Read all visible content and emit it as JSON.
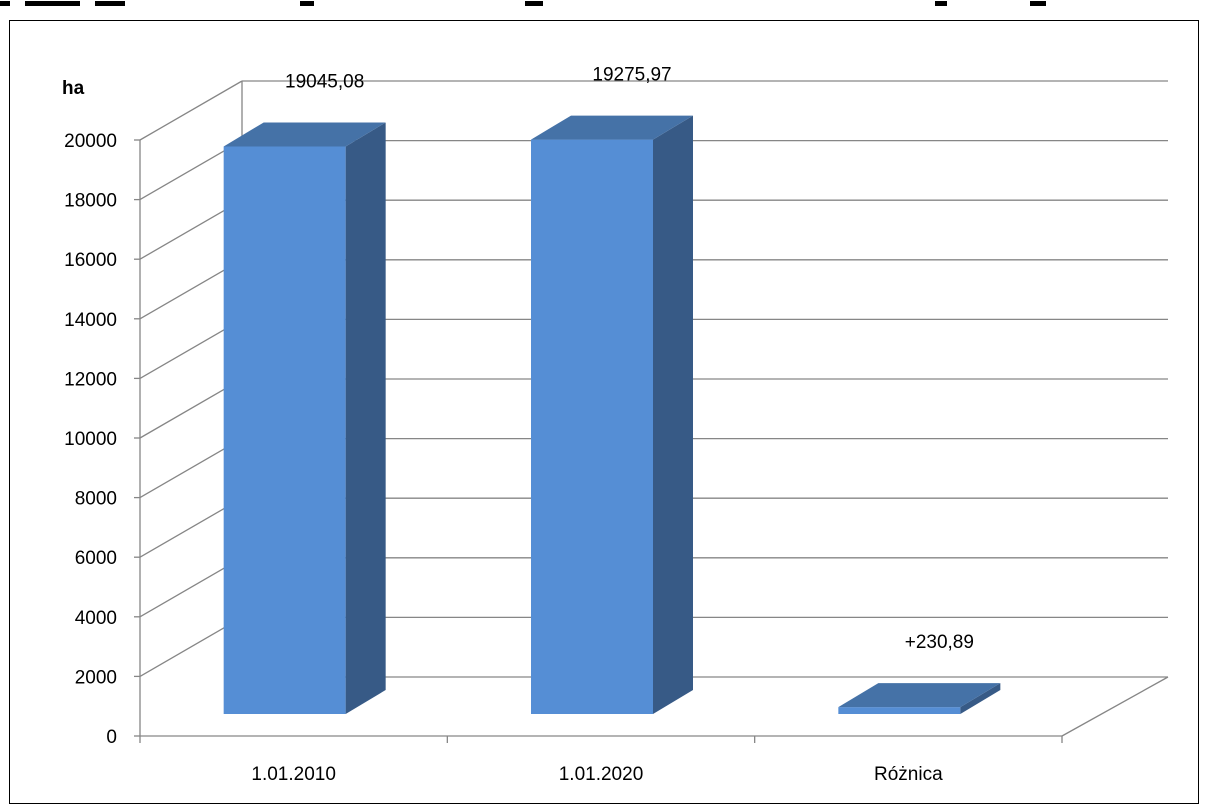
{
  "chart_data": {
    "type": "bar",
    "title": "",
    "xlabel": "",
    "ylabel": "ha",
    "categories": [
      "1.01.2010",
      "1.01.2020",
      "Różnica"
    ],
    "values": [
      19045.08,
      19275.97,
      230.89
    ],
    "data_labels": [
      "19045,08",
      "19275,97",
      "+230,89"
    ],
    "ylim": [
      0,
      20000
    ],
    "yticks": [
      "0",
      "2000",
      "4000",
      "6000",
      "8000",
      "10000",
      "12000",
      "14000",
      "16000",
      "18000",
      "20000"
    ],
    "grid": true,
    "legend": "none",
    "style": "3d-column",
    "colors": {
      "front": "#558ed5",
      "side": "#375a86",
      "top": "#4572a7",
      "grid": "#868686",
      "frame": "#000000"
    }
  }
}
